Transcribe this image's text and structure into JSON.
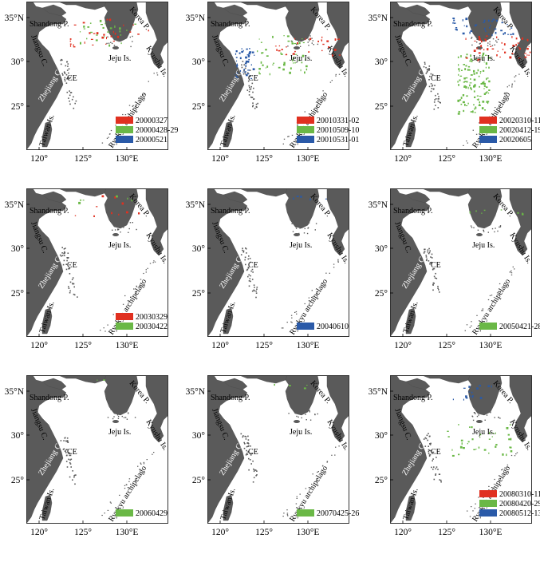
{
  "map": {
    "lon_ticks": [
      "120°",
      "125°",
      "130°E"
    ],
    "lat_ticks": [
      "35°N",
      "30°",
      "25°"
    ],
    "place_labels": {
      "shandong": "Shandong P.",
      "korea": "Korea P.",
      "jiangsu": "Jiangsu C.",
      "jeju": "Jeju Is.",
      "kyushu": "Kyushu Is.",
      "ce": "CE",
      "zhejiang": "Zhejiang C.",
      "ryukyu": "Ryukyu archipelago",
      "taiwan": "Taiwan Is."
    }
  },
  "panels": [
    {
      "legend": [
        {
          "label": "20000327",
          "color": "#e03020"
        },
        {
          "label": "20000428-29",
          "color": "#6ab846"
        },
        {
          "label": "20000521",
          "color": "#2a5aa8"
        }
      ]
    },
    {
      "legend": [
        {
          "label": "20010331-02",
          "color": "#e03020"
        },
        {
          "label": "20010509-10",
          "color": "#6ab846"
        },
        {
          "label": "20010531-01",
          "color": "#2a5aa8"
        }
      ]
    },
    {
      "legend": [
        {
          "label": "20020310-11",
          "color": "#e03020"
        },
        {
          "label": "20020412-19",
          "color": "#6ab846"
        },
        {
          "label": "20020605",
          "color": "#2a5aa8"
        }
      ]
    },
    {
      "legend": [
        {
          "label": "20030329",
          "color": "#e03020"
        },
        {
          "label": "20030422",
          "color": "#6ab846"
        }
      ]
    },
    {
      "legend": [
        {
          "label": "20040610",
          "color": "#2a5aa8"
        }
      ]
    },
    {
      "legend": [
        {
          "label": "20050421-28",
          "color": "#6ab846"
        }
      ]
    },
    {
      "legend": [
        {
          "label": "20060429",
          "color": "#6ab846"
        }
      ]
    },
    {
      "legend": [
        {
          "label": "20070425-26",
          "color": "#6ab846"
        }
      ]
    },
    {
      "legend": [
        {
          "label": "20080310-11",
          "color": "#e03020"
        },
        {
          "label": "20080420-29",
          "color": "#6ab846"
        },
        {
          "label": "20080512-13",
          "color": "#2a5aa8"
        }
      ]
    }
  ]
}
